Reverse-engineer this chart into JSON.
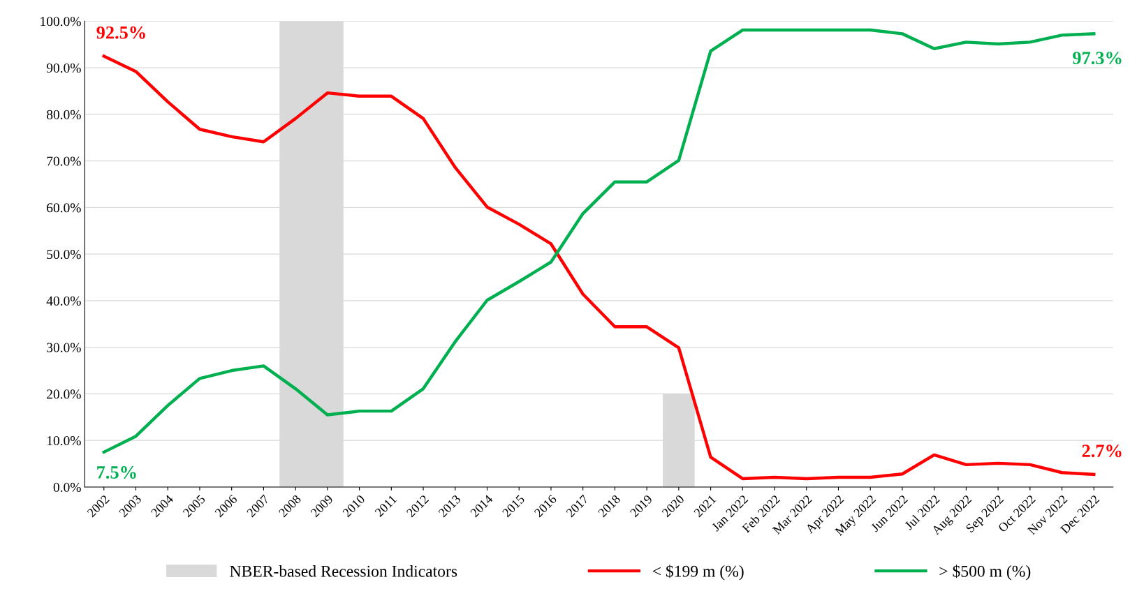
{
  "chart_data": {
    "type": "line",
    "categories": [
      "2002",
      "2003",
      "2004",
      "2005",
      "2006",
      "2007",
      "2008",
      "2009",
      "2010",
      "2011",
      "2012",
      "2013",
      "2014",
      "2015",
      "2016",
      "2017",
      "2018",
      "2019",
      "2020",
      "2021",
      "Jan 2022",
      "Feb 2022",
      "Mar 2022",
      "Apr 2022",
      "May 2022",
      "Jun 2022",
      "Jul 2022",
      "Aug 2022",
      "Sep 2022",
      "Oct 2022",
      "Nov 2022",
      "Dec 2022"
    ],
    "series": [
      {
        "name": "NBER-based Recession Indicators",
        "type": "bar",
        "color": "#d9d9d9",
        "values": [
          null,
          null,
          null,
          null,
          null,
          null,
          100,
          100,
          null,
          null,
          null,
          null,
          null,
          null,
          null,
          null,
          null,
          null,
          20,
          null,
          null,
          null,
          null,
          null,
          null,
          null,
          null,
          null,
          null,
          null,
          null,
          null
        ]
      },
      {
        "name": "< $199 m (%)",
        "color": "#ff0000",
        "values": [
          92.5,
          89.2,
          82.7,
          76.8,
          75.2,
          74.1,
          79.1,
          84.6,
          83.9,
          83.9,
          79.1,
          68.6,
          60.1,
          56.4,
          52.2,
          41.4,
          34.4,
          34.4,
          29.9,
          6.4,
          1.8,
          2.1,
          1.8,
          2.1,
          2.1,
          2.8,
          6.9,
          4.8,
          5.1,
          4.8,
          3.1,
          2.7
        ]
      },
      {
        "name": "> $500 m (%)",
        "color": "#00b050",
        "values": [
          7.5,
          10.9,
          17.5,
          23.3,
          25.0,
          26.0,
          21.1,
          15.5,
          16.3,
          16.3,
          21.1,
          31.2,
          40.1,
          44.1,
          48.3,
          58.7,
          65.5,
          65.5,
          70.1,
          93.6,
          98.1,
          98.1,
          98.1,
          98.1,
          98.1,
          97.3,
          94.1,
          95.5,
          95.1,
          95.5,
          97.0,
          97.3
        ]
      }
    ],
    "ylim": [
      0,
      100
    ],
    "yticks": [
      {
        "value": 0,
        "label": "0.0%"
      },
      {
        "value": 10,
        "label": "10.0%"
      },
      {
        "value": 20,
        "label": "20.0%"
      },
      {
        "value": 30,
        "label": "30.0%"
      },
      {
        "value": 40,
        "label": "40.0%"
      },
      {
        "value": 50,
        "label": "50.0%"
      },
      {
        "value": 60,
        "label": "60.0%"
      },
      {
        "value": 70,
        "label": "70.0%"
      },
      {
        "value": 80,
        "label": "80.0%"
      },
      {
        "value": 90,
        "label": "90.0%"
      },
      {
        "value": 100,
        "label": "100.0%"
      }
    ],
    "grid": "y",
    "legend": "bottom",
    "marker": "none",
    "line_style": "solid",
    "annotations": [
      {
        "text": "92.5%",
        "x": "2002",
        "y": 92.5
      },
      {
        "text": "7.5%",
        "x": "2002",
        "y": 7.5
      },
      {
        "text": "97.3%",
        "x": "Dec 2022",
        "y": 97.3
      },
      {
        "text": "2.7%",
        "x": "Dec 2022",
        "y": 2.7
      }
    ]
  }
}
